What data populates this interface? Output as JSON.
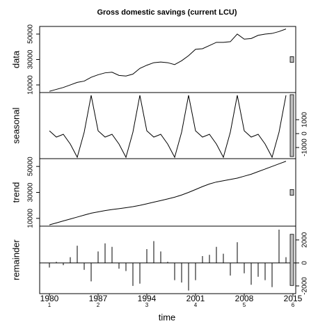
{
  "chart_data": {
    "type": "stl",
    "title": "Gross domestic savings (current LCU)",
    "xlabel": "time",
    "x": [
      1980,
      1981,
      1982,
      1983,
      1984,
      1985,
      1986,
      1987,
      1988,
      1989,
      1990,
      1991,
      1992,
      1993,
      1994,
      1995,
      1996,
      1997,
      1998,
      1999,
      2000,
      2001,
      2002,
      2003,
      2004,
      2005,
      2006,
      2007,
      2008,
      2009,
      2010,
      2011,
      2012,
      2013,
      2014
    ],
    "xlim": [
      1978.6,
      2015.4
    ],
    "xticks": [
      1980,
      1987,
      1994,
      2001,
      2008,
      2015
    ],
    "xtick_sublabels": [
      "1",
      "2",
      "3",
      "4",
      "5",
      "6"
    ],
    "color": "#000000",
    "panels": [
      {
        "type": "line",
        "ylabel": "data",
        "axis_side": "left",
        "ylim": [
          4000,
          56000
        ],
        "yticks": [
          10000,
          30000,
          50000
        ],
        "values": [
          5000,
          6500,
          8000,
          10000,
          12000,
          13000,
          16000,
          18000,
          19500,
          20000,
          17500,
          17000,
          18500,
          23000,
          25500,
          27500,
          28000,
          27500,
          26000,
          29000,
          33000,
          38000,
          38500,
          41000,
          43500,
          43500,
          44000,
          50000,
          46000,
          46500,
          49000,
          50000,
          50500,
          52000,
          54000
        ]
      },
      {
        "type": "line",
        "ylabel": "seasonal",
        "axis_side": "right",
        "ylim": [
          -1800,
          2950
        ],
        "yticks": [
          -1000,
          0,
          1000
        ],
        "values": [
          200,
          -250,
          -50,
          -750,
          -1700,
          100,
          2750,
          200,
          -250,
          -50,
          -750,
          -1700,
          100,
          2750,
          200,
          -250,
          -50,
          -750,
          -1700,
          100,
          2750,
          200,
          -250,
          -50,
          -750,
          -1700,
          100,
          2750,
          200,
          -250,
          -50,
          -750,
          -1700,
          100,
          2750
        ]
      },
      {
        "type": "line",
        "ylabel": "trend",
        "axis_side": "left",
        "ylim": [
          4000,
          56000
        ],
        "yticks": [
          10000,
          30000,
          50000
        ],
        "values": [
          5000,
          6500,
          8000,
          9500,
          11000,
          12500,
          14000,
          15000,
          16000,
          16800,
          17500,
          18200,
          19000,
          20000,
          21200,
          22500,
          23700,
          25000,
          26300,
          28000,
          30000,
          32200,
          34500,
          36500,
          38000,
          39000,
          40000,
          41000,
          42500,
          44000,
          46000,
          48000,
          50000,
          52000,
          54000
        ]
      },
      {
        "type": "bar",
        "ylabel": "remainder",
        "axis_side": "right",
        "ylim": [
          -2670,
          3200
        ],
        "yticks": [
          -2000,
          0,
          2000
        ],
        "values": [
          -400,
          100,
          -200,
          500,
          1500,
          -600,
          -1600,
          1000,
          1700,
          1400,
          -500,
          -700,
          -2000,
          -1800,
          1200,
          1900,
          1000,
          100,
          -1500,
          -1700,
          -2400,
          -1500,
          600,
          700,
          1400,
          800,
          -1100,
          1800,
          -900,
          -1900,
          -1200,
          -1500,
          -2100,
          2900,
          500
        ]
      }
    ]
  }
}
